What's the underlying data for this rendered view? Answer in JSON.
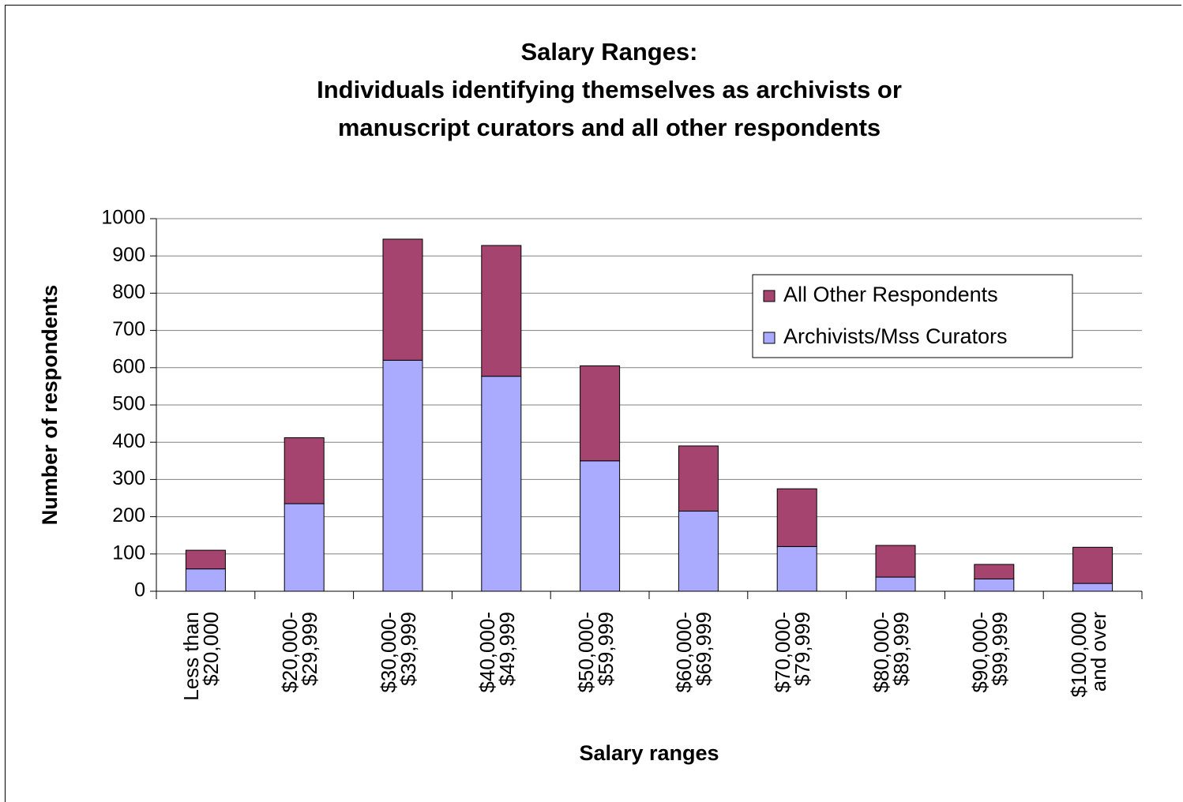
{
  "chart_data": {
    "type": "stacked_bar",
    "title": "Salary Ranges:",
    "subtitle": "Individuals identifying themselves as archivists or\nmanuscript curators and all other respondents",
    "x_label": "Salary ranges",
    "y_label": "Number of respondents",
    "categories": [
      "Less than\n$20,000",
      "$20,000-\n$29,999",
      "$30,000-\n$39,999",
      "$40,000-\n$49,999",
      "$50,000-\n$59,999",
      "$60,000-\n$69,999",
      "$70,000-\n$79,999",
      "$80,000-\n$89,999",
      "$90,000-\n$99,999",
      "$100,000\nand over"
    ],
    "series": [
      {
        "name": "Archivists/Mss Curators",
        "color": "#aaaaff",
        "values": [
          60,
          235,
          620,
          577,
          350,
          215,
          120,
          38,
          33,
          21
        ]
      },
      {
        "name": "All Other Respondents",
        "color": "#a5456f",
        "values": [
          50,
          177,
          325,
          351,
          255,
          175,
          155,
          85,
          39,
          97
        ]
      }
    ],
    "ylim": [
      0,
      1000
    ],
    "yticks": [
      0,
      100,
      200,
      300,
      400,
      500,
      600,
      700,
      800,
      900,
      1000
    ],
    "grid": true,
    "legend": "upper right"
  }
}
